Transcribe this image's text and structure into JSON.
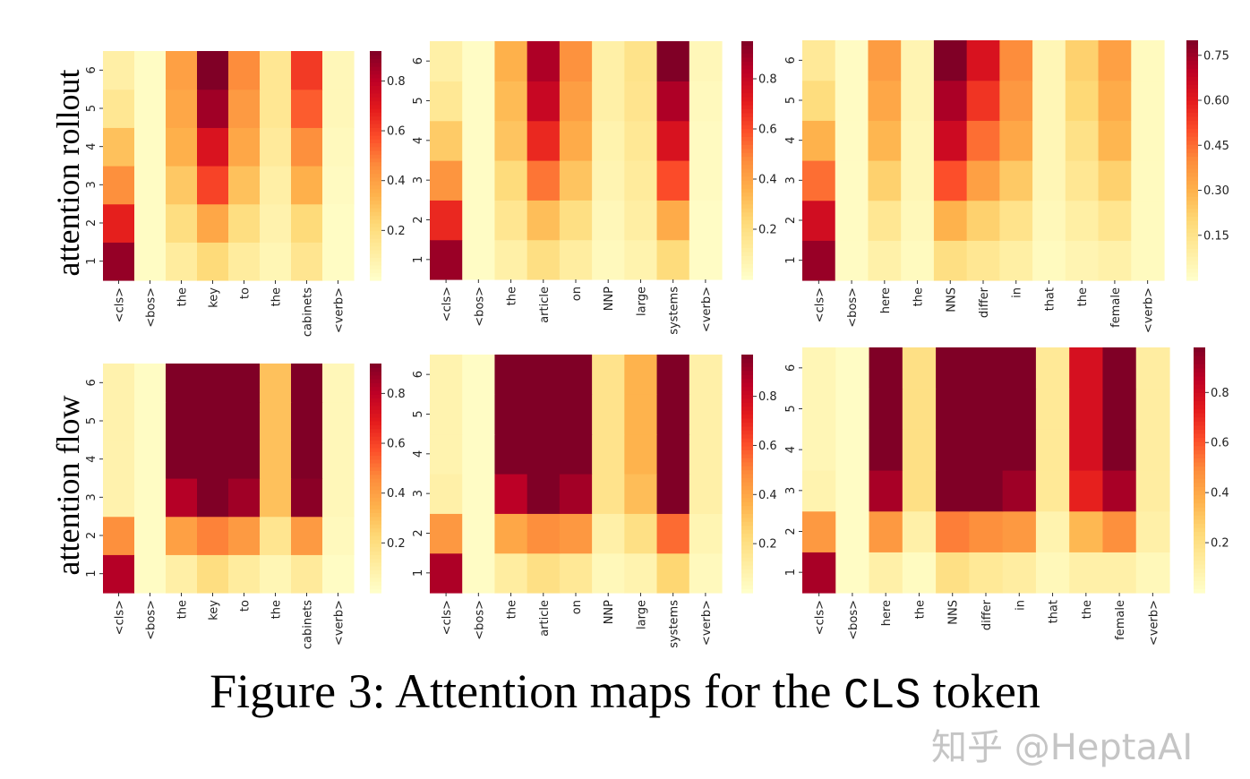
{
  "chart_data": [
    {
      "type": "heatmap",
      "row_label": "attention rollout",
      "colormap": "YlOrRd",
      "vmin": 0.0,
      "vmax": 0.92,
      "colorbar_ticks": [
        "0.2",
        "0.4",
        "0.6",
        "0.8"
      ],
      "colorbar_values": [
        0.2,
        0.4,
        0.6,
        0.8
      ],
      "x": [
        "<cls>",
        "<bos>",
        "the",
        "key",
        "to",
        "the",
        "cabinets",
        "<verb>"
      ],
      "y": [
        "1",
        "2",
        "3",
        "4",
        "5",
        "6"
      ],
      "values": [
        [
          0.88,
          0.02,
          0.12,
          0.22,
          0.12,
          0.06,
          0.16,
          0.02
        ],
        [
          0.68,
          0.02,
          0.2,
          0.38,
          0.2,
          0.08,
          0.22,
          0.02
        ],
        [
          0.45,
          0.02,
          0.28,
          0.6,
          0.3,
          0.1,
          0.35,
          0.03
        ],
        [
          0.3,
          0.02,
          0.35,
          0.72,
          0.38,
          0.13,
          0.45,
          0.04
        ],
        [
          0.15,
          0.02,
          0.38,
          0.86,
          0.42,
          0.15,
          0.55,
          0.05
        ],
        [
          0.1,
          0.02,
          0.4,
          0.92,
          0.46,
          0.15,
          0.62,
          0.05
        ]
      ]
    },
    {
      "type": "heatmap",
      "colormap": "YlOrRd",
      "vmin": 0.0,
      "vmax": 0.95,
      "colorbar_ticks": [
        "0.2",
        "0.4",
        "0.6",
        "0.8"
      ],
      "colorbar_values": [
        0.2,
        0.4,
        0.6,
        0.8
      ],
      "x": [
        "<cls>",
        "<bos>",
        "the",
        "article",
        "on",
        "NNP",
        "large",
        "systems",
        "<verb>"
      ],
      "y": [
        "1",
        "2",
        "3",
        "4",
        "5",
        "6"
      ],
      "values": [
        [
          0.9,
          0.02,
          0.1,
          0.2,
          0.12,
          0.04,
          0.08,
          0.22,
          0.02
        ],
        [
          0.68,
          0.02,
          0.16,
          0.32,
          0.2,
          0.05,
          0.11,
          0.38,
          0.02
        ],
        [
          0.45,
          0.02,
          0.22,
          0.52,
          0.3,
          0.07,
          0.13,
          0.6,
          0.03
        ],
        [
          0.28,
          0.02,
          0.3,
          0.68,
          0.38,
          0.08,
          0.15,
          0.75,
          0.03
        ],
        [
          0.15,
          0.02,
          0.33,
          0.8,
          0.42,
          0.1,
          0.17,
          0.86,
          0.04
        ],
        [
          0.1,
          0.02,
          0.36,
          0.86,
          0.46,
          0.1,
          0.18,
          0.95,
          0.05
        ]
      ]
    },
    {
      "type": "heatmap",
      "colormap": "YlOrRd",
      "vmin": 0.0,
      "vmax": 0.8,
      "colorbar_ticks": [
        "0.15",
        "0.30",
        "0.45",
        "0.60",
        "0.75"
      ],
      "colorbar_values": [
        0.15,
        0.3,
        0.45,
        0.6,
        0.75
      ],
      "x": [
        "<cls>",
        "<bos>",
        "here",
        "the",
        "NNS",
        "differ",
        "in",
        "that",
        "the",
        "female",
        "<verb>"
      ],
      "y": [
        "1",
        "2",
        "3",
        "4",
        "5",
        "6"
      ],
      "values": [
        [
          0.76,
          0.02,
          0.08,
          0.03,
          0.17,
          0.13,
          0.09,
          0.03,
          0.06,
          0.08,
          0.03
        ],
        [
          0.65,
          0.02,
          0.13,
          0.04,
          0.3,
          0.22,
          0.15,
          0.04,
          0.09,
          0.14,
          0.03
        ],
        [
          0.45,
          0.02,
          0.22,
          0.05,
          0.5,
          0.35,
          0.24,
          0.05,
          0.13,
          0.22,
          0.03
        ],
        [
          0.3,
          0.02,
          0.29,
          0.05,
          0.66,
          0.45,
          0.33,
          0.05,
          0.16,
          0.29,
          0.03
        ],
        [
          0.18,
          0.02,
          0.33,
          0.06,
          0.73,
          0.55,
          0.37,
          0.05,
          0.2,
          0.32,
          0.03
        ],
        [
          0.12,
          0.02,
          0.36,
          0.06,
          0.8,
          0.63,
          0.4,
          0.05,
          0.22,
          0.35,
          0.03
        ]
      ]
    },
    {
      "type": "heatmap",
      "row_label": "attention flow",
      "colormap": "YlOrRd",
      "vmin": 0.0,
      "vmax": 0.92,
      "colorbar_ticks": [
        "0.2",
        "0.4",
        "0.6",
        "0.8"
      ],
      "colorbar_values": [
        0.2,
        0.4,
        0.6,
        0.8
      ],
      "x": [
        "<cls>",
        "<bos>",
        "the",
        "key",
        "to",
        "the",
        "cabinets",
        "<verb>"
      ],
      "y": [
        "1",
        "2",
        "3",
        "4",
        "5",
        "6"
      ],
      "values": [
        [
          0.82,
          0.02,
          0.1,
          0.2,
          0.12,
          0.06,
          0.13,
          0.02
        ],
        [
          0.45,
          0.02,
          0.4,
          0.48,
          0.42,
          0.16,
          0.42,
          0.04
        ],
        [
          0.08,
          0.02,
          0.82,
          0.92,
          0.86,
          0.3,
          0.9,
          0.05
        ],
        [
          0.08,
          0.02,
          0.92,
          0.92,
          0.92,
          0.3,
          0.92,
          0.05
        ],
        [
          0.08,
          0.02,
          0.92,
          0.92,
          0.92,
          0.3,
          0.92,
          0.05
        ],
        [
          0.08,
          0.02,
          0.92,
          0.92,
          0.92,
          0.3,
          0.92,
          0.05
        ]
      ]
    },
    {
      "type": "heatmap",
      "colormap": "YlOrRd",
      "vmin": 0.0,
      "vmax": 0.97,
      "colorbar_ticks": [
        "0.2",
        "0.4",
        "0.6",
        "0.8"
      ],
      "colorbar_values": [
        0.2,
        0.4,
        0.6,
        0.8
      ],
      "x": [
        "<cls>",
        "<bos>",
        "the",
        "article",
        "on",
        "NNP",
        "large",
        "systems",
        "<verb>"
      ],
      "y": [
        "1",
        "2",
        "3",
        "4",
        "5",
        "6"
      ],
      "values": [
        [
          0.88,
          0.02,
          0.12,
          0.2,
          0.15,
          0.05,
          0.08,
          0.25,
          0.04
        ],
        [
          0.45,
          0.02,
          0.4,
          0.48,
          0.45,
          0.1,
          0.2,
          0.55,
          0.07
        ],
        [
          0.1,
          0.02,
          0.85,
          0.97,
          0.9,
          0.18,
          0.33,
          0.97,
          0.1
        ],
        [
          0.08,
          0.02,
          0.97,
          0.97,
          0.97,
          0.18,
          0.36,
          0.97,
          0.1
        ],
        [
          0.08,
          0.02,
          0.97,
          0.97,
          0.97,
          0.18,
          0.36,
          0.97,
          0.1
        ],
        [
          0.08,
          0.02,
          0.97,
          0.97,
          0.97,
          0.18,
          0.36,
          0.97,
          0.1
        ]
      ]
    },
    {
      "type": "heatmap",
      "colormap": "YlOrRd",
      "vmin": 0.0,
      "vmax": 0.98,
      "colorbar_ticks": [
        "0.2",
        "0.4",
        "0.6",
        "0.8"
      ],
      "colorbar_values": [
        0.2,
        0.4,
        0.6,
        0.8
      ],
      "x": [
        "<cls>",
        "<bos>",
        "here",
        "the",
        "NNS",
        "differ",
        "in",
        "that",
        "the",
        "female",
        "<verb>"
      ],
      "y": [
        "1",
        "2",
        "3",
        "4",
        "5",
        "6"
      ],
      "values": [
        [
          0.9,
          0.02,
          0.1,
          0.03,
          0.2,
          0.15,
          0.12,
          0.05,
          0.1,
          0.1,
          0.05
        ],
        [
          0.45,
          0.02,
          0.45,
          0.1,
          0.52,
          0.48,
          0.45,
          0.08,
          0.35,
          0.48,
          0.1
        ],
        [
          0.08,
          0.02,
          0.9,
          0.2,
          0.98,
          0.98,
          0.92,
          0.15,
          0.72,
          0.9,
          0.12
        ],
        [
          0.06,
          0.02,
          0.98,
          0.2,
          0.98,
          0.98,
          0.98,
          0.15,
          0.78,
          0.98,
          0.12
        ],
        [
          0.06,
          0.02,
          0.98,
          0.2,
          0.98,
          0.98,
          0.98,
          0.15,
          0.78,
          0.98,
          0.12
        ],
        [
          0.06,
          0.02,
          0.98,
          0.2,
          0.98,
          0.98,
          0.98,
          0.15,
          0.78,
          0.98,
          0.12
        ]
      ]
    }
  ],
  "caption": {
    "prefix": "Figure 3: Attention maps for the ",
    "code": "CLS",
    "suffix": " token"
  },
  "watermark": "知乎 @HeptaAI"
}
